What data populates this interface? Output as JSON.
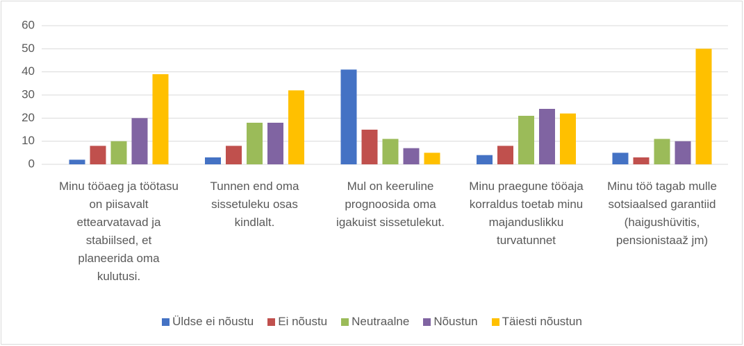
{
  "chart_data": {
    "type": "bar",
    "categories": [
      "Minu tööaeg ja töötasu on piisavalt ettearvatavad ja stabiilsed, et planeerida oma kulutusi.",
      "Tunnen end oma sissetuleku osas kindlalt.",
      "Mul on keeruline prognoosida oma igakuist sissetulekut.",
      "Minu praegune tööaja korraldus toetab minu majanduslikku turvatunnet",
      "Minu töö tagab mulle sotsiaalsed garantiid (haigushüvitis, pensionistaaž jm)"
    ],
    "series": [
      {
        "name": "Üldse ei nõustu",
        "color": "#4472c4",
        "values": [
          2,
          3,
          41,
          4,
          5
        ]
      },
      {
        "name": "Ei nõustu",
        "color": "#c0504d",
        "values": [
          8,
          8,
          15,
          8,
          3
        ]
      },
      {
        "name": "Neutraalne",
        "color": "#9bbb59",
        "values": [
          10,
          18,
          11,
          21,
          11
        ]
      },
      {
        "name": "Nõustun",
        "color": "#8064a2",
        "values": [
          20,
          18,
          7,
          24,
          10
        ]
      },
      {
        "name": "Täiesti nõustun",
        "color": "#ffc000",
        "values": [
          39,
          32,
          5,
          22,
          50
        ]
      }
    ],
    "ylim": [
      0,
      60
    ],
    "yticks": [
      0,
      10,
      20,
      30,
      40,
      50,
      60
    ],
    "grid": true,
    "legend": "bottom"
  }
}
